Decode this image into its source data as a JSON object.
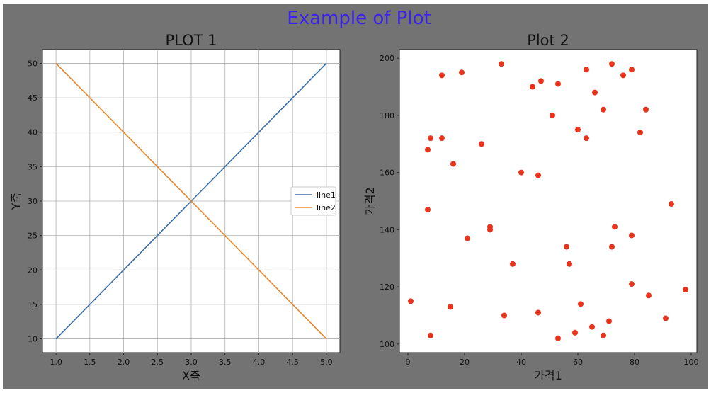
{
  "figure": {
    "title": "Example of Plot",
    "title_color": "#3b22e8",
    "background": "#737373"
  },
  "chart_data": [
    {
      "type": "line",
      "title": "PLOT 1",
      "xlabel": "X축",
      "ylabel": "Y축",
      "xlim": [
        0.8,
        5.2
      ],
      "ylim": [
        8,
        52
      ],
      "xticks": [
        1.0,
        1.5,
        2.0,
        2.5,
        3.0,
        3.5,
        4.0,
        4.5,
        5.0
      ],
      "xtick_labels": [
        "1.0",
        "1.5",
        "2.0",
        "2.5",
        "3.0",
        "3.5",
        "4.0",
        "4.5",
        "5.0"
      ],
      "yticks": [
        10,
        15,
        20,
        25,
        30,
        35,
        40,
        45,
        50
      ],
      "ytick_labels": [
        "10",
        "15",
        "20",
        "25",
        "30",
        "35",
        "40",
        "45",
        "50"
      ],
      "grid": true,
      "legend": "center-right",
      "series": [
        {
          "name": "line1",
          "color": "#3a6ea5",
          "x": [
            1,
            2,
            3,
            4,
            5
          ],
          "y": [
            10,
            20,
            30,
            40,
            50
          ]
        },
        {
          "name": "line2",
          "color": "#e8862a",
          "x": [
            1,
            2,
            3,
            4,
            5
          ],
          "y": [
            50,
            40,
            30,
            20,
            10
          ]
        }
      ]
    },
    {
      "type": "scatter",
      "title": "Plot 2",
      "xlabel": "가격1",
      "ylabel": "가격2",
      "xlim": [
        -3,
        102
      ],
      "ylim": [
        97,
        203
      ],
      "xticks": [
        0,
        20,
        40,
        60,
        80,
        100
      ],
      "xtick_labels": [
        "0",
        "20",
        "40",
        "60",
        "80",
        "100"
      ],
      "yticks": [
        100,
        120,
        140,
        160,
        180,
        200
      ],
      "ytick_labels": [
        "100",
        "120",
        "140",
        "160",
        "180",
        "200"
      ],
      "grid": false,
      "color": "#e8341c",
      "points": [
        [
          1,
          115
        ],
        [
          7,
          168
        ],
        [
          7,
          147
        ],
        [
          8,
          172
        ],
        [
          8,
          103
        ],
        [
          12,
          194
        ],
        [
          12,
          172
        ],
        [
          15,
          113
        ],
        [
          16,
          163
        ],
        [
          19,
          195
        ],
        [
          21,
          137
        ],
        [
          26,
          170
        ],
        [
          29,
          141
        ],
        [
          29,
          140
        ],
        [
          33,
          198
        ],
        [
          34,
          110
        ],
        [
          37,
          128
        ],
        [
          40,
          160
        ],
        [
          44,
          190
        ],
        [
          46,
          159
        ],
        [
          46,
          111
        ],
        [
          47,
          192
        ],
        [
          51,
          180
        ],
        [
          53,
          191
        ],
        [
          53,
          102
        ],
        [
          56,
          134
        ],
        [
          57,
          128
        ],
        [
          59,
          104
        ],
        [
          60,
          175
        ],
        [
          61,
          114
        ],
        [
          63,
          196
        ],
        [
          63,
          172
        ],
        [
          65,
          106
        ],
        [
          66,
          188
        ],
        [
          69,
          182
        ],
        [
          69,
          103
        ],
        [
          71,
          108
        ],
        [
          72,
          198
        ],
        [
          72,
          134
        ],
        [
          73,
          141
        ],
        [
          76,
          194
        ],
        [
          79,
          196
        ],
        [
          79,
          138
        ],
        [
          79,
          121
        ],
        [
          82,
          174
        ],
        [
          84,
          182
        ],
        [
          85,
          117
        ],
        [
          91,
          109
        ],
        [
          93,
          149
        ],
        [
          98,
          119
        ]
      ]
    }
  ]
}
